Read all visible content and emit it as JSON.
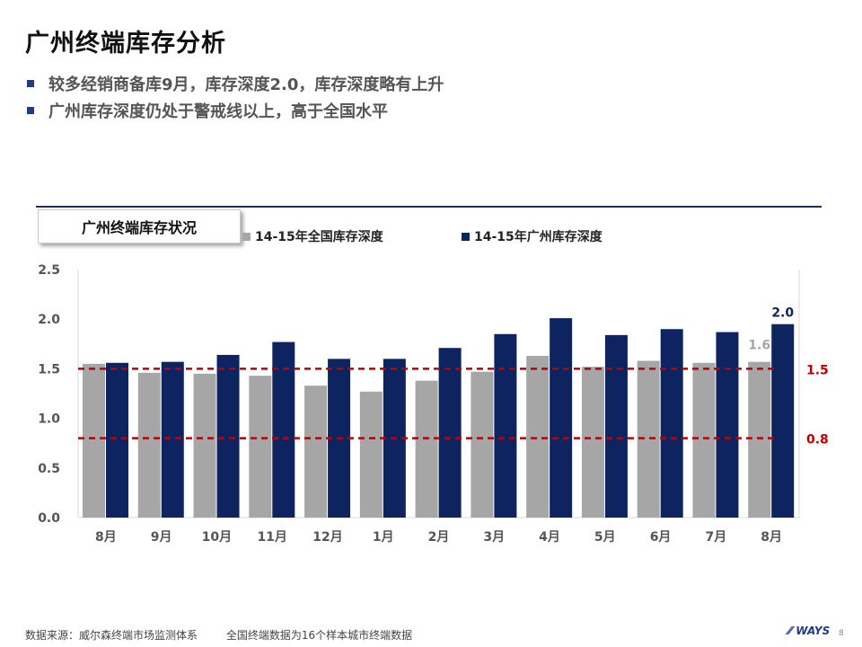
{
  "page": {
    "title": "广州终端库存分析",
    "bullets": [
      "较多经销商备库9月，库存深度2.0，库存深度略有上升",
      "广州库存深度仍处于警戒线以上，高于全国水平"
    ],
    "chart_box_label": "广州终端库存状况",
    "footer": {
      "source": "数据来源：威尔森终端市场监测体系",
      "note": "全国终端数据为16个样本城市终端数据"
    },
    "logo_text": "WAYS",
    "page_number": "8"
  },
  "chart_data": {
    "type": "bar",
    "categories": [
      "8月",
      "9月",
      "10月",
      "11月",
      "12月",
      "1月",
      "2月",
      "3月",
      "4月",
      "5月",
      "6月",
      "7月",
      "8月"
    ],
    "series": [
      {
        "name": "14-15年全国库存深度",
        "color": "#a6a6a6",
        "values": [
          1.55,
          1.46,
          1.45,
          1.43,
          1.33,
          1.27,
          1.38,
          1.47,
          1.63,
          1.52,
          1.58,
          1.56,
          1.57
        ]
      },
      {
        "name": "14-15年广州库存深度",
        "color": "#0d2461",
        "values": [
          1.56,
          1.57,
          1.64,
          1.77,
          1.6,
          1.6,
          1.71,
          1.85,
          2.01,
          1.84,
          1.9,
          1.87,
          1.95
        ]
      }
    ],
    "yticks": [
      "0.0",
      "0.5",
      "1.0",
      "1.5",
      "2.0",
      "2.5"
    ],
    "ylim": [
      0,
      2.5
    ],
    "reference_lines": [
      {
        "value": 1.5,
        "label": "1.5",
        "color": "#c00000"
      },
      {
        "value": 0.8,
        "label": "0.8",
        "color": "#c00000"
      }
    ],
    "data_labels": [
      {
        "series": 0,
        "index": 12,
        "text": "1.6"
      },
      {
        "series": 1,
        "index": 12,
        "text": "2.0"
      }
    ],
    "xlabel": "",
    "ylabel": "",
    "grid": false,
    "legend_position": "top"
  }
}
